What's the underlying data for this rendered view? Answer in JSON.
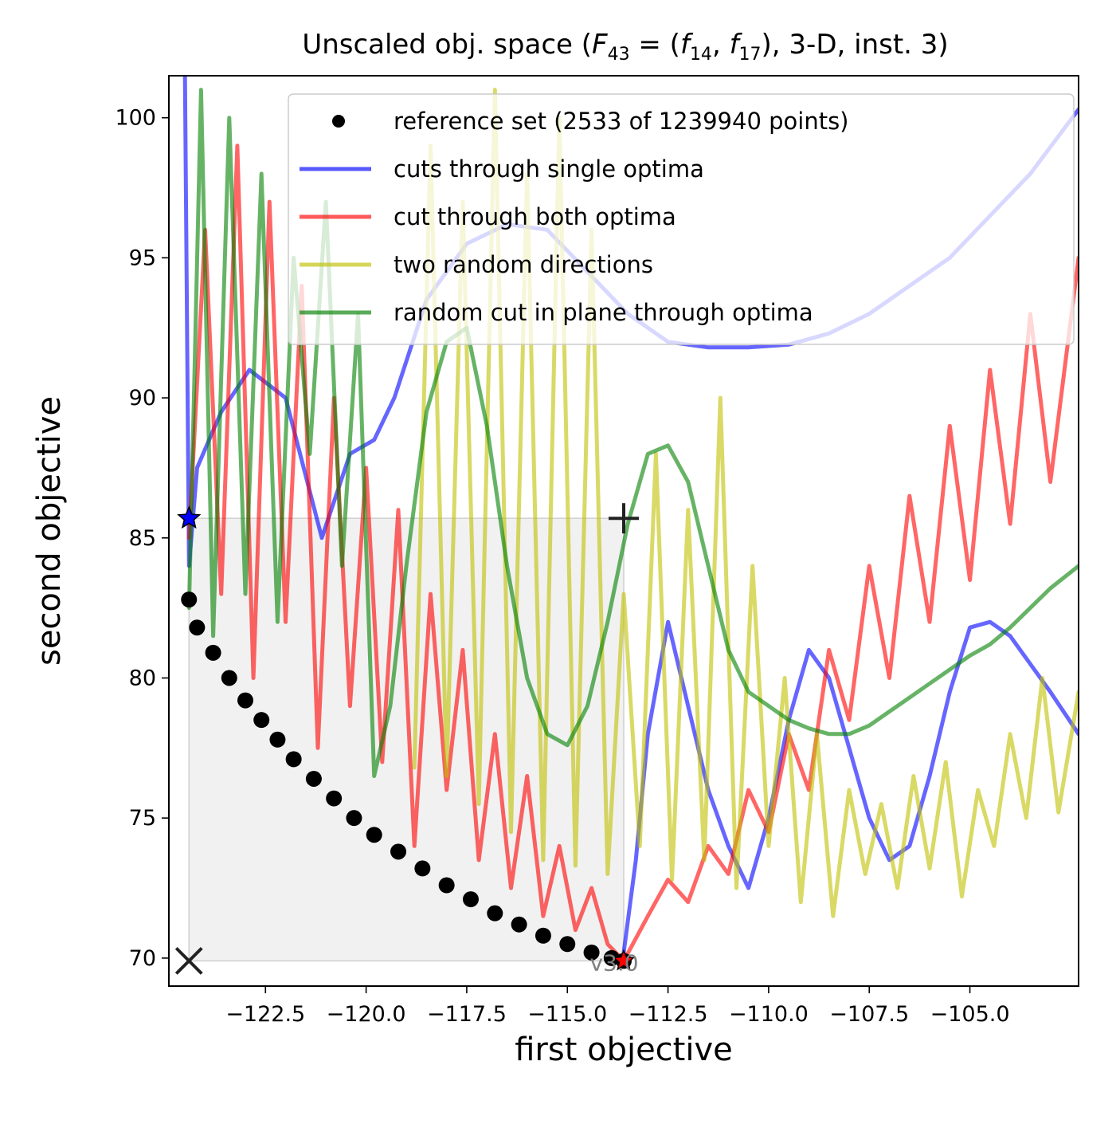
{
  "chart_data": {
    "type": "line",
    "title": "Unscaled obj. space (F_43 = (f_14, f_17), 3-D, inst. 3)",
    "title_parts": {
      "prefix": "Unscaled obj. space (",
      "F": "F",
      "F_sub": "43",
      "eq": " = (",
      "f1": "f",
      "f1_sub": "14",
      "comma": ", ",
      "f2": "f",
      "f2_sub": "17",
      "suffix": "), 3-D, inst. 3)"
    },
    "xlabel": "first objective",
    "ylabel": "second objective",
    "xlim": [
      -124.9,
      -102.3
    ],
    "ylim": [
      69.0,
      101.5
    ],
    "xticks": [
      -122.5,
      -120.0,
      -117.5,
      -115.0,
      -112.5,
      -110.0,
      -107.5,
      -105.0
    ],
    "xtick_labels": [
      "−122.5",
      "−120.0",
      "−117.5",
      "−115.0",
      "−112.5",
      "−110.0",
      "−107.5",
      "−105.0"
    ],
    "yticks": [
      70,
      75,
      80,
      85,
      90,
      95,
      100
    ],
    "ytick_labels": [
      "70",
      "75",
      "80",
      "85",
      "90",
      "95",
      "100"
    ],
    "grid": false,
    "legend_position": "top-right",
    "legend": [
      {
        "label": "reference set (2533 of 1239940 points)",
        "color": "#000000",
        "marker": "dot"
      },
      {
        "label": "cuts through single optima",
        "color": "#0000ff",
        "marker": "line"
      },
      {
        "label": "cut through both optima",
        "color": "#ff0000",
        "marker": "line"
      },
      {
        "label": "two random directions",
        "color": "#bfbf00",
        "marker": "line"
      },
      {
        "label": "random cut in plane through optima",
        "color": "#008000",
        "marker": "line"
      }
    ],
    "version_label": "v3.0",
    "ideal_point": [
      -124.4,
      69.9
    ],
    "nadir_point": [
      -113.6,
      85.7
    ],
    "optimum_1": [
      -124.4,
      85.7
    ],
    "optimum_2": [
      -113.6,
      69.9
    ],
    "reference_set": {
      "x": [
        -124.4,
        -124.2,
        -123.8,
        -123.4,
        -123.0,
        -122.6,
        -122.2,
        -121.8,
        -121.3,
        -120.8,
        -120.3,
        -119.8,
        -119.2,
        -118.6,
        -118.0,
        -117.4,
        -116.8,
        -116.2,
        -115.6,
        -115.0,
        -114.4,
        -113.9,
        -113.6
      ],
      "y": [
        82.8,
        81.8,
        80.9,
        80.0,
        79.2,
        78.5,
        77.8,
        77.1,
        76.4,
        75.7,
        75.0,
        74.4,
        73.8,
        73.2,
        72.6,
        72.1,
        71.6,
        71.2,
        70.8,
        70.5,
        70.2,
        70.0,
        69.9
      ]
    },
    "series": [
      {
        "name": "cuts through single optima",
        "color": "#0000ff",
        "x": [
          -124.5,
          -124.4,
          -124.2,
          -123.6,
          -122.9,
          -122.0,
          -121.1,
          -120.4,
          -119.8,
          -119.3,
          -118.5,
          -117.5,
          -116.5,
          -115.5,
          -114.5,
          -113.5,
          -112.5,
          -111.5,
          -110.5,
          -109.5,
          -108.5,
          -107.5,
          -106.5,
          -105.5,
          -104.5,
          -103.5,
          -102.3
        ],
        "y": [
          101.5,
          84.0,
          87.5,
          89.5,
          91.0,
          90.0,
          85.0,
          88.0,
          88.5,
          90.0,
          93.5,
          95.5,
          96.2,
          96.0,
          94.5,
          93.0,
          92.0,
          91.8,
          91.8,
          91.9,
          92.3,
          93.0,
          94.0,
          95.0,
          96.5,
          98.0,
          100.3
        ]
      },
      {
        "name": "cuts through single optima",
        "color": "#0000ff",
        "x": [
          -113.6,
          -113.3,
          -113.0,
          -112.5,
          -112.0,
          -111.5,
          -111.0,
          -110.5,
          -110.0,
          -109.5,
          -109.0,
          -108.5,
          -108.0,
          -107.5,
          -107.0,
          -106.5,
          -106.0,
          -105.5,
          -105.0,
          -104.5,
          -104.0,
          -103.5,
          -103.0,
          -102.3
        ],
        "y": [
          70.2,
          73.5,
          78.0,
          82.0,
          79.0,
          76.0,
          74.0,
          72.5,
          75.0,
          78.5,
          81.0,
          80.0,
          77.5,
          75.0,
          73.5,
          74.0,
          76.5,
          79.5,
          81.8,
          82.0,
          81.5,
          80.5,
          79.5,
          78.0
        ]
      },
      {
        "name": "cut through both optima",
        "color": "#ff0000",
        "x": [
          -124.4,
          -124.0,
          -123.6,
          -123.2,
          -122.8,
          -122.4,
          -122.0,
          -121.6,
          -121.2,
          -120.8,
          -120.4,
          -120.0,
          -119.6,
          -119.2,
          -118.8,
          -118.4,
          -118.0,
          -117.6,
          -117.2,
          -116.8,
          -116.4,
          -116.0,
          -115.6,
          -115.2,
          -114.8,
          -114.4,
          -114.0,
          -113.6
        ],
        "y": [
          85.0,
          96.0,
          83.0,
          99.0,
          80.0,
          97.0,
          82.0,
          94.0,
          77.5,
          90.0,
          79.0,
          87.5,
          77.0,
          86.0,
          74.0,
          83.0,
          76.0,
          81.0,
          73.5,
          78.0,
          72.5,
          76.5,
          71.5,
          74.0,
          71.0,
          72.5,
          70.5,
          69.9
        ]
      },
      {
        "name": "cut through both optima",
        "color": "#ff0000",
        "x": [
          -113.6,
          -113.0,
          -112.5,
          -112.0,
          -111.5,
          -111.0,
          -110.5,
          -110.0,
          -109.5,
          -109.0,
          -108.5,
          -108.0,
          -107.5,
          -107.0,
          -106.5,
          -106.0,
          -105.5,
          -105.0,
          -104.5,
          -104.0,
          -103.5,
          -103.0,
          -102.3
        ],
        "y": [
          69.9,
          71.5,
          72.8,
          72.0,
          74.0,
          73.0,
          76.0,
          74.5,
          78.0,
          76.0,
          81.0,
          78.5,
          84.0,
          80.0,
          86.5,
          82.0,
          89.0,
          83.5,
          91.0,
          85.5,
          93.0,
          87.0,
          95.0
        ]
      },
      {
        "name": "two random directions",
        "color": "#bfbf00",
        "x": [
          -118.8,
          -118.4,
          -118.0,
          -117.6,
          -117.2,
          -116.8,
          -116.4,
          -116.0,
          -115.6,
          -115.2,
          -114.8,
          -114.4,
          -114.0,
          -113.6,
          -113.2,
          -112.8,
          -112.4,
          -112.0,
          -111.6,
          -111.2,
          -110.8,
          -110.4,
          -110.0,
          -109.6,
          -109.2,
          -108.8,
          -108.4,
          -108.0,
          -107.6,
          -107.2,
          -106.8,
          -106.4,
          -106.0,
          -105.6,
          -105.2,
          -104.8,
          -104.4,
          -104.0,
          -103.6,
          -103.2,
          -102.8,
          -102.3
        ],
        "y": [
          76.8,
          99.0,
          76.5,
          97.0,
          75.5,
          101.0,
          74.5,
          98.0,
          73.5,
          100.0,
          73.3,
          96.0,
          73.0,
          83.0,
          74.0,
          88.0,
          72.8,
          86.0,
          73.5,
          90.0,
          72.5,
          84.0,
          74.0,
          80.0,
          72.0,
          78.0,
          71.5,
          76.0,
          73.0,
          75.5,
          72.5,
          76.5,
          73.2,
          77.0,
          72.2,
          76.0,
          74.0,
          78.0,
          75.0,
          80.0,
          75.2,
          79.5
        ]
      },
      {
        "name": "random cut in plane through optima",
        "color": "#008000",
        "x": [
          -124.4,
          -124.1,
          -123.8,
          -123.4,
          -123.0,
          -122.6,
          -122.2,
          -121.8,
          -121.4,
          -121.0,
          -120.6,
          -120.2,
          -119.8,
          -119.4,
          -119.0,
          -118.5,
          -118.0,
          -117.5,
          -117.0,
          -116.5,
          -116.0,
          -115.5,
          -115.0,
          -114.5,
          -114.0,
          -113.5,
          -113.0,
          -112.5,
          -112.0,
          -111.5,
          -111.0,
          -110.5,
          -110.0,
          -109.5,
          -109.0,
          -108.5,
          -108.0,
          -107.5,
          -107.0,
          -106.5,
          -106.0,
          -105.5,
          -105.0,
          -104.5,
          -104.0,
          -103.5,
          -103.0,
          -102.3
        ],
        "y": [
          82.5,
          101.0,
          81.5,
          100.0,
          83.0,
          98.0,
          82.0,
          95.0,
          88.0,
          97.0,
          84.0,
          93.0,
          76.5,
          79.0,
          84.0,
          89.5,
          92.0,
          92.5,
          89.0,
          84.0,
          80.0,
          78.0,
          77.6,
          79.0,
          82.0,
          85.5,
          88.0,
          88.3,
          87.0,
          84.0,
          81.0,
          79.5,
          79.0,
          78.5,
          78.2,
          78.0,
          78.0,
          78.3,
          78.8,
          79.3,
          79.8,
          80.3,
          80.8,
          81.2,
          81.8,
          82.5,
          83.2,
          84.0
        ]
      }
    ]
  }
}
